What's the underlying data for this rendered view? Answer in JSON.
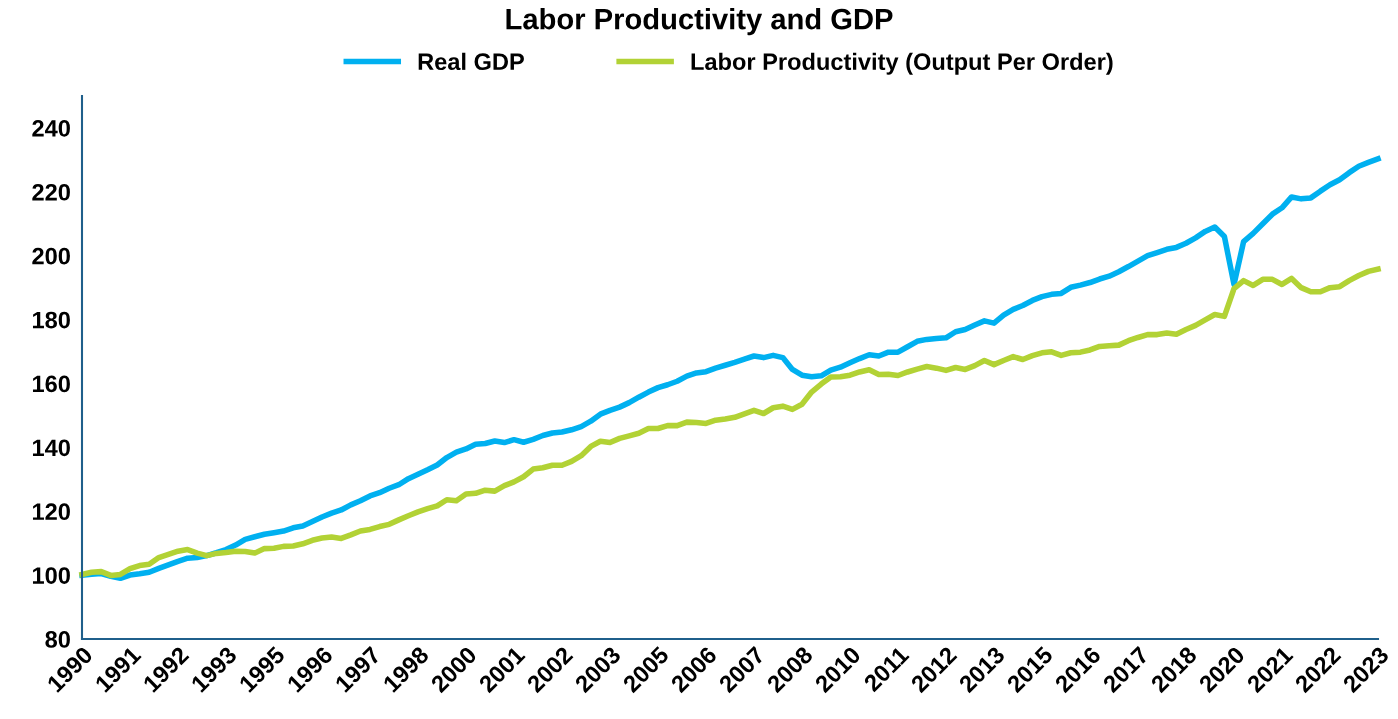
{
  "chart_data": {
    "type": "line",
    "title": "Labor Productivity and GDP",
    "categories": [
      "1990",
      null,
      null,
      null,
      null,
      "1991",
      null,
      null,
      null,
      null,
      "1992",
      null,
      null,
      null,
      null,
      "1993",
      null,
      null,
      null,
      null,
      "1995",
      null,
      null,
      null,
      null,
      "1996",
      null,
      null,
      null,
      null,
      "1997",
      null,
      null,
      null,
      null,
      "1998",
      null,
      null,
      null,
      null,
      "2000",
      null,
      null,
      null,
      null,
      "2001",
      null,
      null,
      null,
      null,
      "2002",
      null,
      null,
      null,
      null,
      "2003",
      null,
      null,
      null,
      null,
      "2005",
      null,
      null,
      null,
      null,
      "2006",
      null,
      null,
      null,
      null,
      "2007",
      null,
      null,
      null,
      null,
      "2008",
      null,
      null,
      null,
      null,
      "2010",
      null,
      null,
      null,
      null,
      "2011",
      null,
      null,
      null,
      null,
      "2012",
      null,
      null,
      null,
      null,
      "2013",
      null,
      null,
      null,
      null,
      "2015",
      null,
      null,
      null,
      null,
      "2016",
      null,
      null,
      null,
      null,
      "2017",
      null,
      null,
      null,
      null,
      "2018",
      null,
      null,
      null,
      null,
      "2020",
      null,
      null,
      null,
      null,
      "2021",
      null,
      null,
      null,
      null,
      "2022",
      null,
      null,
      null,
      null,
      "2023"
    ],
    "series": [
      {
        "name": "Real GDP",
        "color": "#00b0f0",
        "values": [
          100.0,
          100.3,
          100.5,
          99.6,
          99.0,
          100.0,
          100.4,
          100.9,
          102.1,
          103.2,
          104.3,
          105.3,
          105.5,
          106.1,
          107.0,
          108.0,
          109.4,
          111.2,
          112.0,
          112.8,
          113.3,
          113.8,
          114.8,
          115.4,
          116.8,
          118.2,
          119.4,
          120.4,
          122.0,
          123.3,
          124.8,
          125.8,
          127.2,
          128.3,
          130.2,
          131.6,
          133.0,
          134.5,
          136.8,
          138.5,
          139.5,
          141.0,
          141.2,
          142.0,
          141.5,
          142.4,
          141.6,
          142.5,
          143.7,
          144.5,
          144.8,
          145.5,
          146.5,
          148.2,
          150.4,
          151.6,
          152.6,
          154.0,
          155.7,
          157.3,
          158.7,
          159.6,
          160.7,
          162.3,
          163.3,
          163.7,
          164.8,
          165.7,
          166.6,
          167.6,
          168.6,
          168.1,
          168.8,
          168.1,
          164.4,
          162.6,
          162.1,
          162.4,
          164.2,
          165.1,
          166.5,
          167.8,
          169.0,
          168.6,
          169.8,
          169.8,
          171.5,
          173.2,
          173.8,
          174.1,
          174.3,
          176.2,
          176.9,
          178.3,
          179.6,
          178.9,
          181.4,
          183.2,
          184.4,
          186.0,
          187.2,
          187.9,
          188.2,
          190.1,
          190.8,
          191.6,
          192.7,
          193.6,
          195.0,
          196.6,
          198.3,
          200.0,
          201.0,
          202.0,
          202.6,
          203.9,
          205.6,
          207.6,
          209.0,
          206.0,
          191.0,
          204.4,
          207.0,
          210.0,
          213.0,
          215.0,
          218.4,
          217.8,
          218.1,
          220.2,
          222.2,
          223.8,
          226.0,
          228.0,
          229.2,
          230.3
        ]
      },
      {
        "name": "Labor Productivity (Output Per Order)",
        "color": "#b2d235",
        "values": [
          100.2,
          100.9,
          101.1,
          99.9,
          100.2,
          102.0,
          103.0,
          103.4,
          105.5,
          106.5,
          107.5,
          108.0,
          106.9,
          106.1,
          106.8,
          107.1,
          107.5,
          107.4,
          106.9,
          108.3,
          108.4,
          109.0,
          109.1,
          109.8,
          110.9,
          111.6,
          111.9,
          111.5,
          112.6,
          113.8,
          114.3,
          115.2,
          115.9,
          117.3,
          118.6,
          119.8,
          120.8,
          121.7,
          123.6,
          123.3,
          125.4,
          125.6,
          126.6,
          126.3,
          128.0,
          129.2,
          130.8,
          133.2,
          133.6,
          134.4,
          134.4,
          135.6,
          137.4,
          140.3,
          141.9,
          141.5,
          142.8,
          143.6,
          144.4,
          145.9,
          145.9,
          146.8,
          146.8,
          147.9,
          147.8,
          147.5,
          148.5,
          148.9,
          149.4,
          150.5,
          151.6,
          150.6,
          152.4,
          152.9,
          151.9,
          153.5,
          157.3,
          159.8,
          162.0,
          162.1,
          162.6,
          163.6,
          164.3,
          162.8,
          162.9,
          162.5,
          163.6,
          164.5,
          165.3,
          164.8,
          164.1,
          165.0,
          164.4,
          165.6,
          167.2,
          165.9,
          167.2,
          168.4,
          167.5,
          168.7,
          169.6,
          169.9,
          168.8,
          169.6,
          169.8,
          170.5,
          171.6,
          171.8,
          172.0,
          173.4,
          174.4,
          175.3,
          175.3,
          175.8,
          175.4,
          176.9,
          178.2,
          179.9,
          181.6,
          181.0,
          189.7,
          192.2,
          190.7,
          192.6,
          192.6,
          191.0,
          192.9,
          190.0,
          188.7,
          188.7,
          190.0,
          190.3,
          192.2,
          193.8,
          195.1,
          195.8
        ]
      }
    ],
    "ylim": [
      80,
      250
    ],
    "yticks": [
      80,
      100,
      120,
      140,
      160,
      180,
      200,
      220,
      240
    ],
    "grid": false,
    "legend": "top",
    "marker": "none",
    "line_style": "solid"
  }
}
